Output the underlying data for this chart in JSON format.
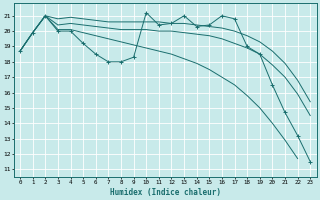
{
  "xlabel": "Humidex (Indice chaleur)",
  "bg_color": "#c8eaea",
  "grid_color": "#ffffff",
  "line_color": "#1a6e6e",
  "xlim": [
    -0.5,
    23.5
  ],
  "ylim": [
    10.5,
    21.8
  ],
  "yticks": [
    11,
    12,
    13,
    14,
    15,
    16,
    17,
    18,
    19,
    20,
    21
  ],
  "xticks": [
    0,
    1,
    2,
    3,
    4,
    5,
    6,
    7,
    8,
    9,
    10,
    11,
    12,
    13,
    14,
    15,
    16,
    17,
    18,
    19,
    20,
    21,
    22,
    23
  ],
  "series": [
    {
      "x": [
        0,
        1,
        2,
        3,
        4,
        5,
        6,
        7,
        8,
        9,
        10,
        11,
        12,
        13,
        14,
        15,
        16,
        17,
        18,
        19,
        20,
        21,
        22,
        23
      ],
      "y": [
        18.7,
        19.9,
        21.0,
        20.0,
        20.0,
        19.2,
        18.5,
        18.0,
        18.0,
        18.3,
        21.2,
        20.4,
        20.5,
        21.0,
        20.3,
        20.4,
        21.0,
        20.8,
        19.0,
        18.5,
        16.5,
        14.7,
        13.2,
        11.5
      ],
      "marker": "+"
    },
    {
      "x": [
        0,
        1,
        2,
        3,
        4,
        5,
        6,
        7,
        8,
        9,
        10,
        11,
        12,
        13,
        14,
        15,
        16,
        17,
        18,
        19,
        20,
        21,
        22,
        23
      ],
      "y": [
        18.7,
        19.9,
        21.0,
        20.8,
        20.9,
        20.8,
        20.7,
        20.6,
        20.6,
        20.6,
        20.6,
        20.6,
        20.5,
        20.5,
        20.4,
        20.3,
        20.2,
        20.0,
        19.7,
        19.3,
        18.7,
        17.9,
        16.8,
        15.4
      ],
      "marker": null
    },
    {
      "x": [
        0,
        1,
        2,
        3,
        4,
        5,
        6,
        7,
        8,
        9,
        10,
        11,
        12,
        13,
        14,
        15,
        16,
        17,
        18,
        19,
        20,
        21,
        22,
        23
      ],
      "y": [
        18.7,
        19.9,
        21.0,
        20.4,
        20.5,
        20.4,
        20.3,
        20.2,
        20.1,
        20.1,
        20.1,
        20.0,
        20.0,
        19.9,
        19.8,
        19.7,
        19.5,
        19.2,
        18.9,
        18.5,
        17.8,
        17.0,
        15.9,
        14.5
      ],
      "marker": null
    },
    {
      "x": [
        0,
        1,
        2,
        3,
        4,
        5,
        6,
        7,
        8,
        9,
        10,
        11,
        12,
        13,
        14,
        15,
        16,
        17,
        18,
        19,
        20,
        21,
        22,
        23
      ],
      "y": [
        18.7,
        19.9,
        21.0,
        20.1,
        20.1,
        19.9,
        19.7,
        19.5,
        19.3,
        19.1,
        18.9,
        18.7,
        18.5,
        18.2,
        17.9,
        17.5,
        17.0,
        16.5,
        15.8,
        15.0,
        14.0,
        12.9,
        11.7,
        null
      ],
      "marker": null
    }
  ]
}
